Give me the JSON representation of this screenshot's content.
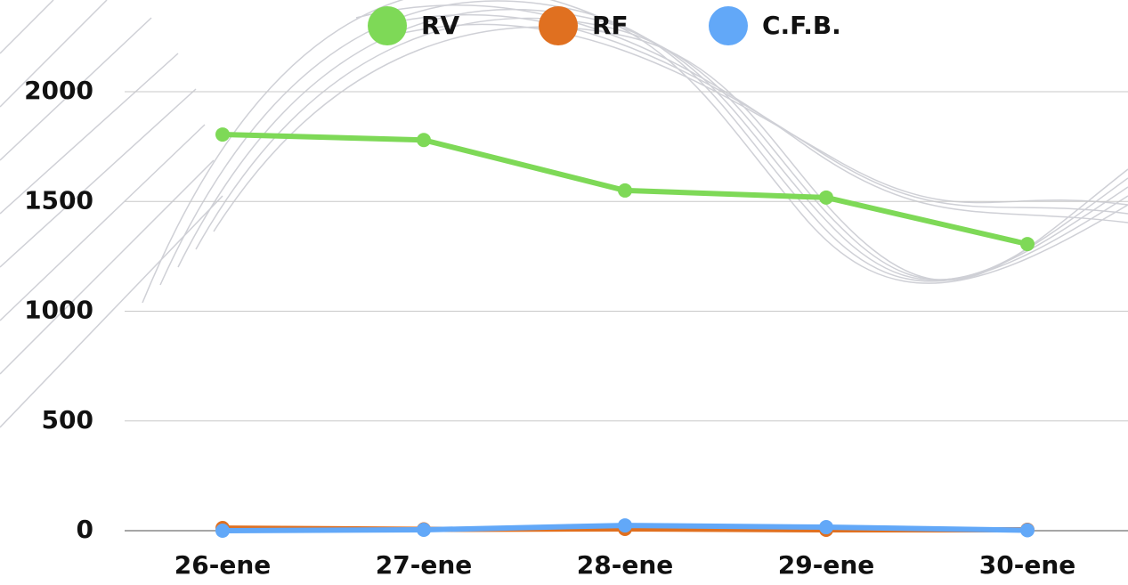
{
  "chart_data": {
    "type": "line",
    "categories": [
      "26-ene",
      "27-ene",
      "28-ene",
      "29-ene",
      "30-ene"
    ],
    "series": [
      {
        "name": "RV",
        "color": "#7ed957",
        "values": [
          1805,
          1780,
          1550,
          1518,
          1306
        ]
      },
      {
        "name": "RF",
        "color": "#e07020",
        "values": [
          12,
          6,
          8,
          4,
          4
        ]
      },
      {
        "name": "C.F.B.",
        "color": "#62a8f8",
        "values": [
          0,
          4,
          24,
          16,
          2
        ]
      }
    ],
    "ylim": [
      0,
      2000
    ],
    "yticks": [
      0,
      500,
      1000,
      1500,
      2000
    ],
    "grid": true,
    "legend": "top"
  }
}
